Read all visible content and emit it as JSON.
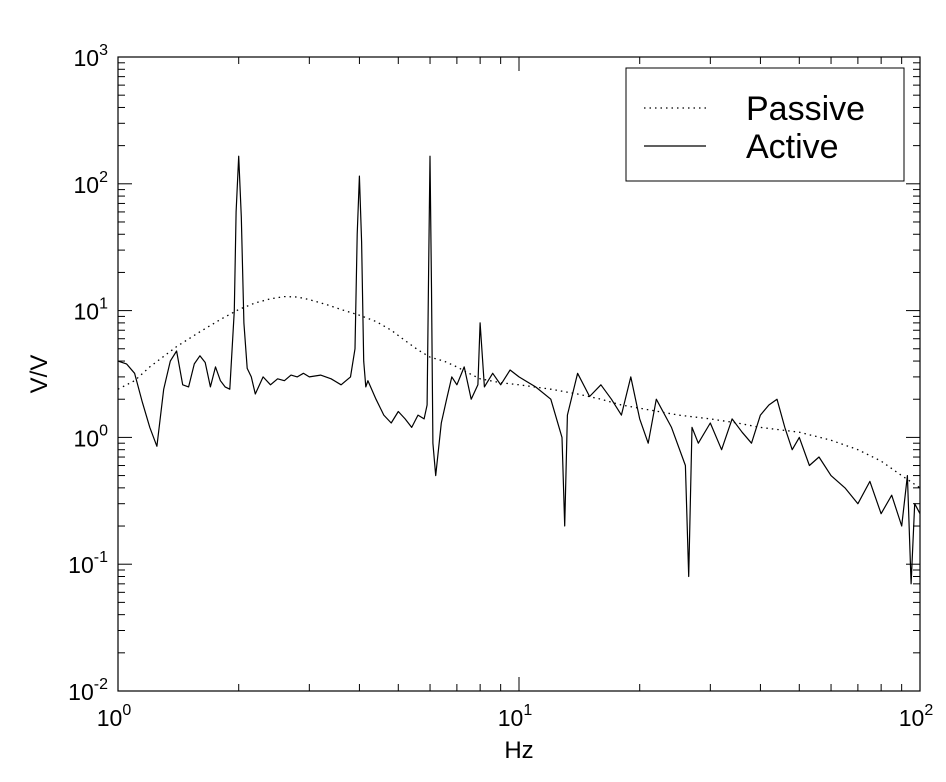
{
  "chart_data": {
    "type": "line",
    "xscale": "log",
    "yscale": "log",
    "xlim": [
      1,
      100
    ],
    "ylim": [
      0.01,
      1000
    ],
    "xlabel": "Hz",
    "ylabel": "V/V",
    "x_ticks": [
      {
        "base": "10",
        "exp": "0"
      },
      {
        "base": "10",
        "exp": "1"
      },
      {
        "base": "10",
        "exp": "2"
      }
    ],
    "y_ticks": [
      {
        "base": "10",
        "exp": "-2"
      },
      {
        "base": "10",
        "exp": "-1"
      },
      {
        "base": "10",
        "exp": "0"
      },
      {
        "base": "10",
        "exp": "1"
      },
      {
        "base": "10",
        "exp": "2"
      },
      {
        "base": "10",
        "exp": "3"
      }
    ],
    "legend_position": "top-right",
    "grid": false,
    "series": [
      {
        "name": "Passive",
        "style": "dotted",
        "color": "#000000",
        "x": [
          1.0,
          1.1,
          1.2,
          1.4,
          1.6,
          1.8,
          2.0,
          2.2,
          2.4,
          2.6,
          2.8,
          3.0,
          3.3,
          3.6,
          4.0,
          4.4,
          4.8,
          5.2,
          5.6,
          6.0,
          6.5,
          7.0,
          7.5,
          8.0,
          9.0,
          10,
          12,
          14,
          16,
          18,
          20,
          25,
          30,
          35,
          40,
          50,
          60,
          70,
          80,
          90,
          100
        ],
        "y": [
          2.4,
          2.8,
          3.6,
          5.2,
          6.8,
          8.5,
          10.2,
          11.5,
          12.4,
          12.9,
          12.8,
          12.2,
          11.2,
          10.2,
          9.2,
          8.2,
          7.0,
          5.8,
          4.9,
          4.3,
          4.0,
          3.6,
          3.2,
          2.9,
          2.7,
          2.6,
          2.4,
          2.2,
          2.0,
          1.8,
          1.7,
          1.5,
          1.4,
          1.3,
          1.2,
          1.1,
          0.95,
          0.8,
          0.65,
          0.5,
          0.4
        ]
      },
      {
        "name": "Active",
        "style": "solid",
        "color": "#000000",
        "x": [
          1.0,
          1.05,
          1.1,
          1.15,
          1.2,
          1.25,
          1.3,
          1.35,
          1.4,
          1.45,
          1.5,
          1.55,
          1.6,
          1.65,
          1.7,
          1.75,
          1.8,
          1.85,
          1.9,
          1.95,
          1.97,
          2.0,
          2.03,
          2.06,
          2.1,
          2.15,
          2.2,
          2.3,
          2.4,
          2.5,
          2.6,
          2.7,
          2.8,
          2.9,
          3.0,
          3.2,
          3.4,
          3.6,
          3.8,
          3.9,
          3.95,
          4.0,
          4.05,
          4.1,
          4.15,
          4.2,
          4.4,
          4.6,
          4.8,
          5.0,
          5.2,
          5.4,
          5.6,
          5.8,
          5.9,
          5.95,
          6.0,
          6.05,
          6.1,
          6.2,
          6.4,
          6.6,
          6.8,
          7.0,
          7.3,
          7.6,
          7.9,
          8.0,
          8.2,
          8.6,
          9.0,
          9.5,
          10,
          11,
          12,
          12.8,
          13,
          13.2,
          14,
          15,
          16,
          17,
          18,
          19,
          20,
          21,
          22,
          24,
          26,
          26.5,
          27,
          28,
          30,
          32,
          34,
          36,
          38,
          40,
          42,
          44,
          46,
          48,
          50,
          53,
          56,
          60,
          65,
          70,
          75,
          80,
          85,
          90,
          93,
          95,
          97,
          100
        ],
        "y": [
          4.0,
          3.8,
          3.2,
          1.9,
          1.2,
          0.85,
          2.4,
          4.0,
          4.8,
          2.6,
          2.5,
          3.8,
          4.4,
          3.9,
          2.5,
          3.6,
          2.8,
          2.5,
          2.4,
          10,
          60,
          165,
          55,
          8,
          3.5,
          3.0,
          2.2,
          3.0,
          2.6,
          2.9,
          2.8,
          3.1,
          3.0,
          3.2,
          3.0,
          3.1,
          2.9,
          2.6,
          3.0,
          5,
          40,
          115,
          35,
          4,
          2.5,
          2.8,
          2.0,
          1.5,
          1.3,
          1.6,
          1.4,
          1.2,
          1.5,
          1.4,
          1.8,
          20,
          165,
          15,
          0.9,
          0.5,
          1.3,
          2.0,
          3.0,
          2.6,
          3.6,
          2.0,
          2.6,
          8.0,
          2.5,
          3.2,
          2.6,
          3.4,
          3.0,
          2.5,
          2.0,
          1.0,
          0.2,
          1.5,
          3.2,
          2.1,
          2.6,
          2.0,
          1.5,
          3.0,
          1.4,
          0.9,
          2.0,
          1.2,
          0.6,
          0.08,
          1.2,
          0.9,
          1.3,
          0.8,
          1.4,
          1.1,
          0.9,
          1.5,
          1.8,
          2.0,
          1.2,
          0.8,
          1.0,
          0.6,
          0.7,
          0.5,
          0.4,
          0.3,
          0.45,
          0.25,
          0.35,
          0.2,
          0.5,
          0.07,
          0.3,
          0.25
        ]
      }
    ]
  }
}
